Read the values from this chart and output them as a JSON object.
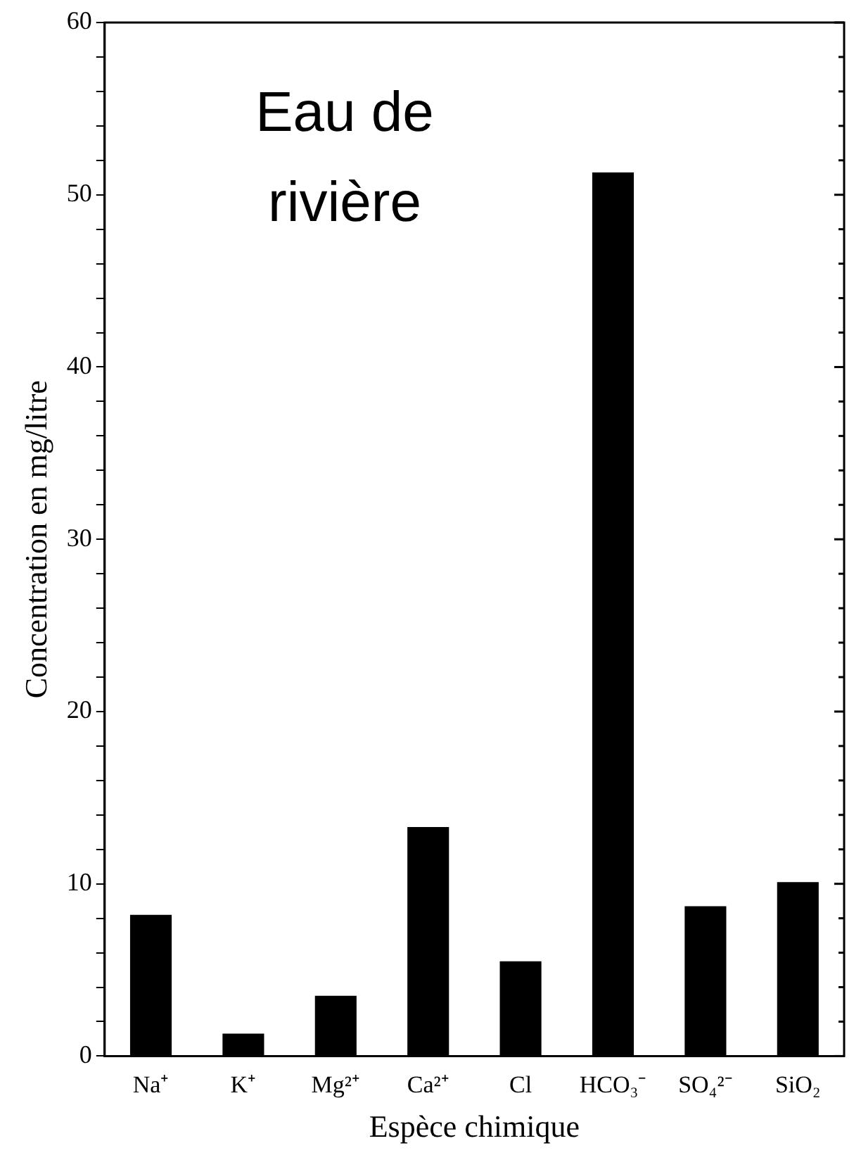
{
  "chart_data": {
    "type": "bar",
    "xlabel": "Espèce chimique",
    "ylabel": "Concentration en mg/litre",
    "annotations": [
      "Eau de rivière"
    ],
    "categories": [
      "Na⁺",
      "K⁺",
      "Mg²⁺",
      "Ca²⁺",
      "Cl",
      "HCO₃⁻",
      "SO₄²⁻",
      "SiO₂"
    ],
    "values": [
      8.2,
      1.3,
      3.5,
      13.3,
      5.5,
      51.3,
      8.7,
      10.1
    ],
    "color": "#000000",
    "ylim": [
      0,
      60
    ],
    "yticks": [
      0,
      {
        "value": 2,
        "label": null
      },
      {
        "value": 4,
        "label": null
      },
      {
        "value": 6,
        "label": null
      },
      {
        "value": 8,
        "label": null
      },
      10,
      {
        "value": 12,
        "label": null
      },
      {
        "value": 14,
        "label": null
      },
      {
        "value": 16,
        "label": null
      },
      {
        "value": 18,
        "label": null
      },
      20,
      {
        "value": 22,
        "label": null
      },
      {
        "value": 24,
        "label": null
      },
      {
        "value": 26,
        "label": null
      },
      {
        "value": 28,
        "label": null
      },
      30,
      {
        "value": 32,
        "label": null
      },
      {
        "value": 34,
        "label": null
      },
      {
        "value": 36,
        "label": null
      },
      {
        "value": 38,
        "label": null
      },
      40,
      {
        "value": 42,
        "label": null
      },
      {
        "value": 44,
        "label": null
      },
      {
        "value": 46,
        "label": null
      },
      {
        "value": 48,
        "label": null
      },
      50,
      {
        "value": 52,
        "label": null
      },
      {
        "value": 54,
        "label": null
      },
      {
        "value": 56,
        "label": null
      },
      {
        "value": 58,
        "label": null
      },
      60
    ],
    "grid": false,
    "legend": false
  }
}
